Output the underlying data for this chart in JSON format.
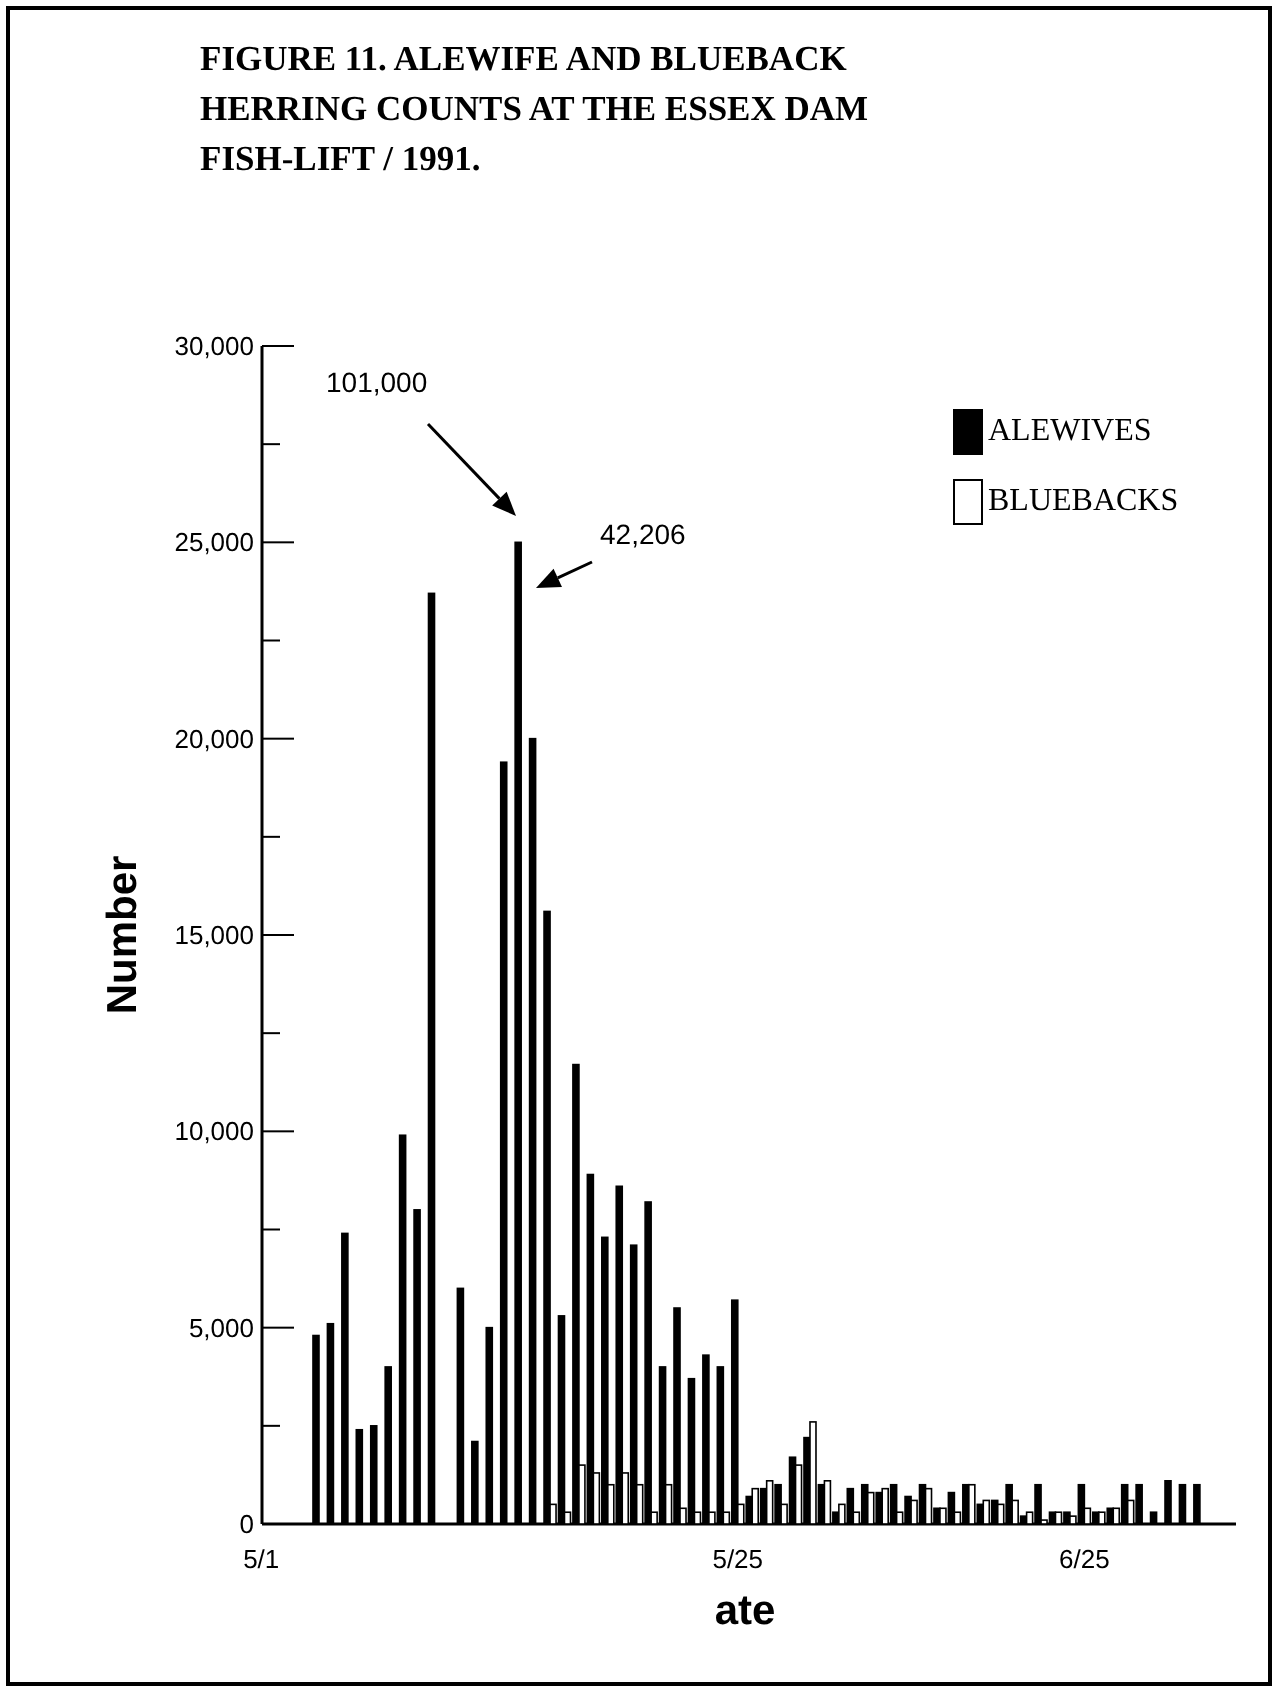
{
  "chart_data": {
    "type": "bar",
    "title": "FIGURE 11.  ALEWIFE AND BLUEBACK HERRING COUNTS AT THE ESSEX DAM FISH-LIFT / 1991.",
    "xlabel": "ate",
    "ylabel": "Number",
    "categories": [
      "5/1",
      null,
      null,
      null,
      null,
      null,
      null,
      null,
      null,
      null,
      null,
      null,
      null,
      null,
      null,
      null,
      null,
      null,
      null,
      null,
      null,
      null,
      null,
      null,
      null,
      null,
      null,
      null,
      null,
      null,
      null,
      null,
      null,
      "5/25",
      null,
      null,
      null,
      null,
      null,
      null,
      null,
      null,
      null,
      null,
      null,
      null,
      null,
      null,
      null,
      null,
      null,
      null,
      null,
      null,
      null,
      null,
      null,
      "6/25",
      null,
      null,
      null,
      null,
      null,
      null,
      null,
      null,
      null,
      null
    ],
    "series": [
      {
        "name": "ALEWIVES",
        "color": "#000000",
        "values": [
          null,
          null,
          null,
          null,
          4800,
          5100,
          7400,
          2400,
          2500,
          4000,
          9900,
          8000,
          23700,
          null,
          6000,
          2100,
          5000,
          19400,
          25000,
          20000,
          15600,
          5300,
          11700,
          8900,
          7300,
          8600,
          7100,
          8200,
          4000,
          5500,
          3700,
          4300,
          4000,
          5700,
          700,
          900,
          1000,
          1700,
          2200,
          1000,
          300,
          900,
          1000,
          800,
          1000,
          700,
          1000,
          400,
          800,
          1000,
          500,
          600,
          1000,
          200,
          1000,
          300,
          300,
          1000,
          300,
          400,
          1000,
          1000,
          300,
          1100,
          1000,
          1000,
          null,
          null
        ]
      },
      {
        "name": "BLUEBACKS",
        "color": "#ffffff",
        "values": [
          null,
          null,
          null,
          null,
          null,
          null,
          null,
          null,
          null,
          null,
          null,
          null,
          null,
          null,
          null,
          null,
          null,
          null,
          null,
          null,
          500,
          300,
          1500,
          1300,
          1000,
          1300,
          1000,
          300,
          1000,
          400,
          300,
          300,
          300,
          500,
          900,
          1100,
          500,
          1500,
          2600,
          1100,
          500,
          300,
          800,
          900,
          300,
          600,
          900,
          400,
          300,
          1000,
          600,
          500,
          600,
          300,
          100,
          300,
          200,
          400,
          300,
          400,
          600,
          null,
          null,
          null,
          null,
          null,
          null,
          null
        ]
      }
    ],
    "ylim": [
      0,
      30000
    ],
    "yticks": [
      {
        "value": 0,
        "label": "0"
      },
      {
        "value": 2500,
        "label": null
      },
      {
        "value": 5000,
        "label": "5,000"
      },
      {
        "value": 7500,
        "label": null
      },
      {
        "value": 10000,
        "label": "10,000"
      },
      {
        "value": 12500,
        "label": null
      },
      {
        "value": 15000,
        "label": "15,000"
      },
      {
        "value": 17500,
        "label": null
      },
      {
        "value": 20000,
        "label": "20,000"
      },
      {
        "value": 22500,
        "label": null
      },
      {
        "value": 25000,
        "label": "25,000"
      },
      {
        "value": 27500,
        "label": null
      },
      {
        "value": 30000,
        "label": "30,000"
      }
    ],
    "annotations": [
      "101,000",
      "42,206"
    ],
    "legend": "top right"
  }
}
